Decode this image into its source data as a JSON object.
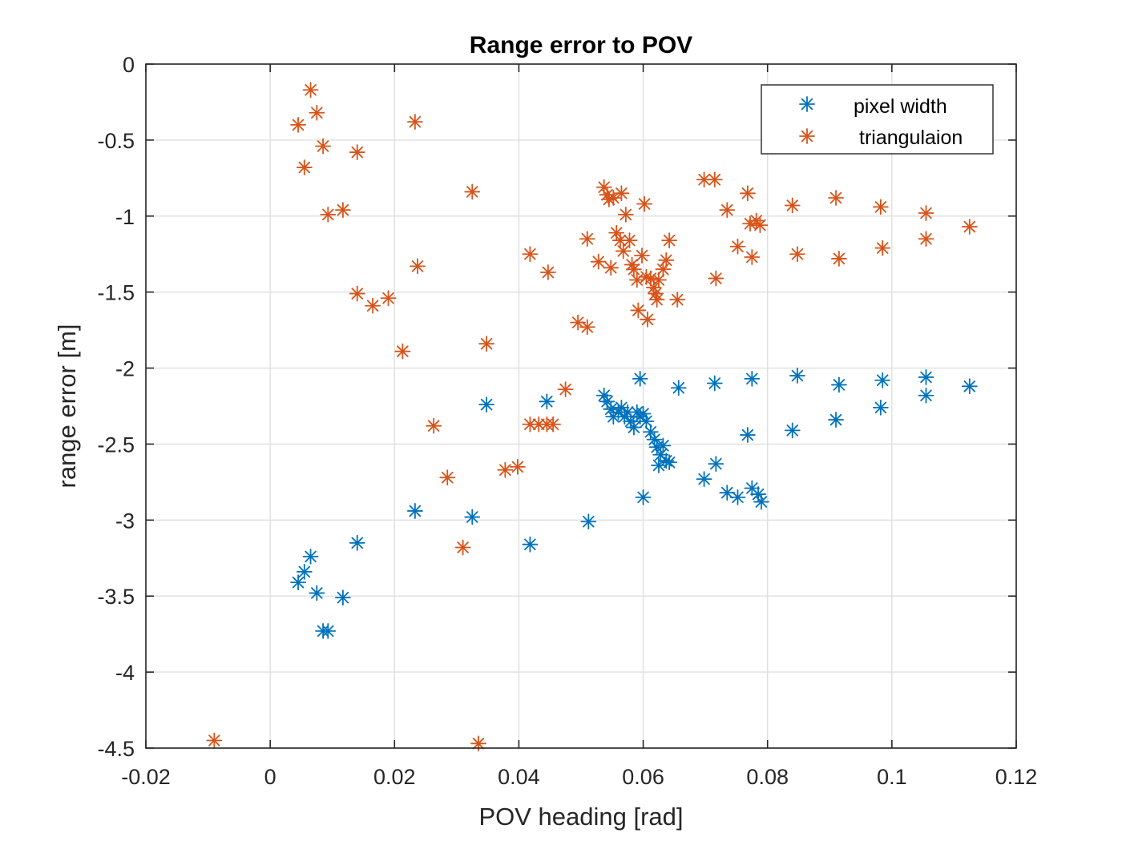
{
  "chart_data": {
    "type": "scatter",
    "title": "Range error to POV",
    "xlabel": "POV heading [rad]",
    "ylabel": "range error [m]",
    "xlim": [
      -0.02,
      0.12
    ],
    "ylim": [
      -4.5,
      0
    ],
    "xticks": [
      -0.02,
      0,
      0.02,
      0.04,
      0.06,
      0.08,
      0.1,
      0.12
    ],
    "xtick_labels": [
      "-0.02",
      "0",
      "0.02",
      "0.04",
      "0.06",
      "0.08",
      "0.1",
      "0.12"
    ],
    "yticks": [
      0,
      -0.5,
      -1,
      -1.5,
      -2,
      -2.5,
      -3,
      -3.5,
      -4,
      -4.5
    ],
    "ytick_labels": [
      "0",
      "-0.5",
      "-1",
      "-1.5",
      "-2",
      "-2.5",
      "-3",
      "-3.5",
      "-4",
      "-4.5"
    ],
    "grid": true,
    "legend_position": "top-right",
    "marker": "asterisk",
    "series": [
      {
        "name": "pixel width",
        "color": "#0072BD",
        "points": [
          [
            0.0065,
            -3.24
          ],
          [
            0.0055,
            -3.34
          ],
          [
            0.0045,
            -3.41
          ],
          [
            0.0075,
            -3.48
          ],
          [
            0.0085,
            -3.73
          ],
          [
            0.0093,
            -3.73
          ],
          [
            0.0117,
            -3.51
          ],
          [
            0.014,
            -3.15
          ],
          [
            0.0233,
            -2.94
          ],
          [
            0.0325,
            -2.98
          ],
          [
            0.0348,
            -2.24
          ],
          [
            0.0418,
            -3.16
          ],
          [
            0.0445,
            -2.22
          ],
          [
            0.0512,
            -3.01
          ],
          [
            0.0537,
            -2.18
          ],
          [
            0.0542,
            -2.22
          ],
          [
            0.0548,
            -2.27
          ],
          [
            0.0552,
            -2.32
          ],
          [
            0.056,
            -2.29
          ],
          [
            0.0565,
            -2.26
          ],
          [
            0.057,
            -2.32
          ],
          [
            0.0575,
            -2.29
          ],
          [
            0.058,
            -2.35
          ],
          [
            0.0585,
            -2.39
          ],
          [
            0.059,
            -2.29
          ],
          [
            0.0595,
            -2.32
          ],
          [
            0.06,
            -2.3
          ],
          [
            0.0605,
            -2.35
          ],
          [
            0.0612,
            -2.42
          ],
          [
            0.0618,
            -2.47
          ],
          [
            0.0622,
            -2.52
          ],
          [
            0.0628,
            -2.57
          ],
          [
            0.0632,
            -2.51
          ],
          [
            0.0637,
            -2.61
          ],
          [
            0.0642,
            -2.62
          ],
          [
            0.0625,
            -2.64
          ],
          [
            0.06,
            -2.85
          ],
          [
            0.0595,
            -2.07
          ],
          [
            0.0657,
            -2.13
          ],
          [
            0.0698,
            -2.73
          ],
          [
            0.0715,
            -2.1
          ],
          [
            0.0717,
            -2.63
          ],
          [
            0.0735,
            -2.82
          ],
          [
            0.0752,
            -2.85
          ],
          [
            0.0768,
            -2.44
          ],
          [
            0.0775,
            -2.07
          ],
          [
            0.0775,
            -2.79
          ],
          [
            0.0785,
            -2.83
          ],
          [
            0.079,
            -2.88
          ],
          [
            0.084,
            -2.41
          ],
          [
            0.0848,
            -2.05
          ],
          [
            0.091,
            -2.34
          ],
          [
            0.0915,
            -2.11
          ],
          [
            0.0982,
            -2.26
          ],
          [
            0.0985,
            -2.08
          ],
          [
            0.1055,
            -2.06
          ],
          [
            0.1055,
            -2.18
          ],
          [
            0.1125,
            -2.12
          ]
        ]
      },
      {
        "name": "triangulaion",
        "color": "#D95319",
        "points": [
          [
            0.0065,
            -0.17
          ],
          [
            0.0075,
            -0.32
          ],
          [
            0.0045,
            -0.4
          ],
          [
            0.0085,
            -0.54
          ],
          [
            0.0055,
            -0.68
          ],
          [
            0.0093,
            -0.99
          ],
          [
            0.0117,
            -0.96
          ],
          [
            0.014,
            -0.58
          ],
          [
            0.0233,
            -0.38
          ],
          [
            0.014,
            -1.51
          ],
          [
            0.0165,
            -1.59
          ],
          [
            0.019,
            -1.54
          ],
          [
            0.0213,
            -1.89
          ],
          [
            0.0237,
            -1.33
          ],
          [
            0.0263,
            -2.38
          ],
          [
            0.0285,
            -2.72
          ],
          [
            0.031,
            -3.18
          ],
          [
            0.0325,
            -0.84
          ],
          [
            0.0348,
            -1.84
          ],
          [
            0.0378,
            -2.67
          ],
          [
            0.0398,
            -2.65
          ],
          [
            0.0418,
            -1.25
          ],
          [
            0.0418,
            -2.37
          ],
          [
            0.0432,
            -2.37
          ],
          [
            0.0445,
            -2.37
          ],
          [
            0.0447,
            -1.37
          ],
          [
            0.0455,
            -2.37
          ],
          [
            0.0475,
            -2.14
          ],
          [
            0.0495,
            -1.7
          ],
          [
            0.051,
            -1.73
          ],
          [
            0.051,
            -1.15
          ],
          [
            0.0528,
            -1.3
          ],
          [
            0.0537,
            -0.81
          ],
          [
            0.0542,
            -0.86
          ],
          [
            0.0545,
            -0.89
          ],
          [
            0.0548,
            -1.34
          ],
          [
            0.0552,
            -0.88
          ],
          [
            0.0557,
            -1.11
          ],
          [
            0.0563,
            -1.16
          ],
          [
            0.0565,
            -0.85
          ],
          [
            0.0568,
            -1.23
          ],
          [
            0.0572,
            -0.99
          ],
          [
            0.0578,
            -1.16
          ],
          [
            0.0582,
            -1.32
          ],
          [
            0.0585,
            -1.35
          ],
          [
            0.059,
            -1.42
          ],
          [
            0.0592,
            -1.62
          ],
          [
            0.0598,
            -1.26
          ],
          [
            0.0602,
            -0.92
          ],
          [
            0.0605,
            -1.4
          ],
          [
            0.0607,
            -1.68
          ],
          [
            0.0612,
            -1.41
          ],
          [
            0.0617,
            -1.47
          ],
          [
            0.062,
            -1.51
          ],
          [
            0.0622,
            -1.55
          ],
          [
            0.0625,
            -1.42
          ],
          [
            0.0632,
            -1.35
          ],
          [
            0.0637,
            -1.29
          ],
          [
            0.0642,
            -1.16
          ],
          [
            0.0655,
            -1.55
          ],
          [
            0.0698,
            -0.76
          ],
          [
            0.0715,
            -0.76
          ],
          [
            0.0717,
            -1.41
          ],
          [
            0.0735,
            -0.96
          ],
          [
            0.0752,
            -1.2
          ],
          [
            0.0768,
            -0.85
          ],
          [
            0.0772,
            -1.05
          ],
          [
            0.0775,
            -1.27
          ],
          [
            0.0782,
            -1.03
          ],
          [
            0.0788,
            -1.06
          ],
          [
            0.084,
            -0.93
          ],
          [
            0.0848,
            -1.25
          ],
          [
            0.091,
            -0.88
          ],
          [
            0.0915,
            -1.28
          ],
          [
            0.0982,
            -0.94
          ],
          [
            0.0985,
            -1.21
          ],
          [
            0.1055,
            -0.98
          ],
          [
            0.1055,
            -1.15
          ],
          [
            0.1125,
            -1.07
          ],
          [
            -0.009,
            -4.45
          ],
          [
            0.0335,
            -4.47
          ]
        ]
      }
    ]
  }
}
